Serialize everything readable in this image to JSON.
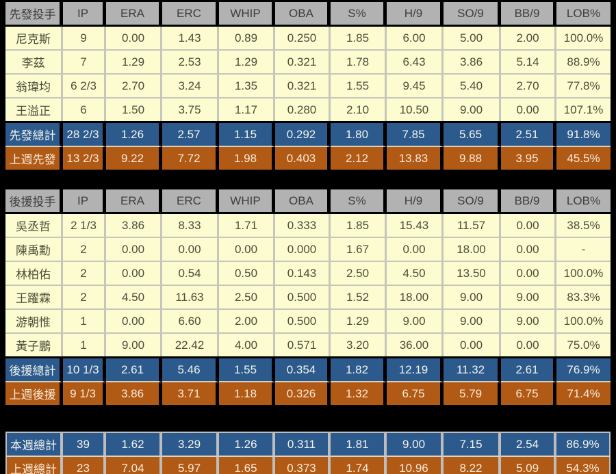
{
  "colors": {
    "page_bg": "#000000",
    "header_bg": "#b2b2b2",
    "player_row_bg": "#fcfcd0",
    "total_row_bg": "#2c5a8c",
    "last_week_row_bg": "#b15a16",
    "player_text": "#4d4d3a",
    "total_text": "#f2f4ee",
    "last_week_text": "#f9ead7"
  },
  "chart_data": [
    {
      "type": "table",
      "title": "先發投手",
      "columns": [
        "先發投手",
        "IP",
        "ERA",
        "ERC",
        "WHIP",
        "OBA",
        "S%",
        "H/9",
        "SO/9",
        "BB/9",
        "LOB%"
      ],
      "rows": [
        {
          "style": "player",
          "cells": [
            "尼克斯",
            "9",
            "0.00",
            "1.43",
            "0.89",
            "0.250",
            "1.85",
            "6.00",
            "5.00",
            "2.00",
            "100.0%"
          ]
        },
        {
          "style": "player",
          "cells": [
            "李茲",
            "7",
            "1.29",
            "2.53",
            "1.29",
            "0.321",
            "1.78",
            "6.43",
            "3.86",
            "5.14",
            "88.9%"
          ]
        },
        {
          "style": "player",
          "cells": [
            "翁瑋均",
            "6 2/3",
            "2.70",
            "3.24",
            "1.35",
            "0.321",
            "1.55",
            "9.45",
            "5.40",
            "2.70",
            "77.8%"
          ]
        },
        {
          "style": "player",
          "cells": [
            "王溢正",
            "6",
            "1.50",
            "3.75",
            "1.17",
            "0.280",
            "2.10",
            "10.50",
            "9.00",
            "0.00",
            "107.1%"
          ]
        },
        {
          "style": "total",
          "cells": [
            "先發總計",
            "28 2/3",
            "1.26",
            "2.57",
            "1.15",
            "0.292",
            "1.80",
            "7.85",
            "5.65",
            "2.51",
            "91.8%"
          ]
        },
        {
          "style": "lastweek",
          "cells": [
            "上週先發",
            "13 2/3",
            "9.22",
            "7.72",
            "1.98",
            "0.403",
            "2.12",
            "13.83",
            "9.88",
            "3.95",
            "45.5%"
          ]
        }
      ]
    },
    {
      "type": "table",
      "title": "後援投手",
      "columns": [
        "後援投手",
        "IP",
        "ERA",
        "ERC",
        "WHIP",
        "OBA",
        "S%",
        "H/9",
        "SO/9",
        "BB/9",
        "LOB%"
      ],
      "rows": [
        {
          "style": "player",
          "cells": [
            "吳丞哲",
            "2 1/3",
            "3.86",
            "8.33",
            "1.71",
            "0.333",
            "1.85",
            "15.43",
            "11.57",
            "0.00",
            "38.5%"
          ]
        },
        {
          "style": "player",
          "cells": [
            "陳禹勳",
            "2",
            "0.00",
            "0.00",
            "0.00",
            "0.000",
            "1.67",
            "0.00",
            "18.00",
            "0.00",
            "-"
          ]
        },
        {
          "style": "player",
          "cells": [
            "林柏佑",
            "2",
            "0.00",
            "0.54",
            "0.50",
            "0.143",
            "2.50",
            "4.50",
            "13.50",
            "0.00",
            "100.0%"
          ]
        },
        {
          "style": "player",
          "cells": [
            "王躍霖",
            "2",
            "4.50",
            "11.63",
            "2.50",
            "0.500",
            "1.52",
            "18.00",
            "9.00",
            "9.00",
            "83.3%"
          ]
        },
        {
          "style": "player",
          "cells": [
            "游朝惟",
            "1",
            "0.00",
            "6.60",
            "2.00",
            "0.500",
            "1.29",
            "9.00",
            "9.00",
            "9.00",
            "100.0%"
          ]
        },
        {
          "style": "player",
          "cells": [
            "黃子鵬",
            "1",
            "9.00",
            "22.42",
            "4.00",
            "0.571",
            "3.20",
            "36.00",
            "0.00",
            "0.00",
            "75.0%"
          ]
        },
        {
          "style": "total",
          "cells": [
            "後援總計",
            "10 1/3",
            "2.61",
            "5.46",
            "1.55",
            "0.354",
            "1.82",
            "12.19",
            "11.32",
            "2.61",
            "76.9%"
          ]
        },
        {
          "style": "lastweek",
          "cells": [
            "上週後援",
            "9 1/3",
            "3.86",
            "3.71",
            "1.18",
            "0.326",
            "1.32",
            "6.75",
            "5.79",
            "6.75",
            "71.4%"
          ]
        }
      ]
    },
    {
      "type": "table",
      "title": "週總計",
      "columns": null,
      "rows": [
        {
          "style": "total",
          "cells": [
            "本週總計",
            "39",
            "1.62",
            "3.29",
            "1.26",
            "0.311",
            "1.81",
            "9.00",
            "7.15",
            "2.54",
            "86.9%"
          ]
        },
        {
          "style": "lastweek",
          "cells": [
            "上週總計",
            "23",
            "7.04",
            "5.97",
            "1.65",
            "0.373",
            "1.74",
            "10.96",
            "8.22",
            "5.09",
            "54.3%"
          ]
        }
      ]
    }
  ]
}
